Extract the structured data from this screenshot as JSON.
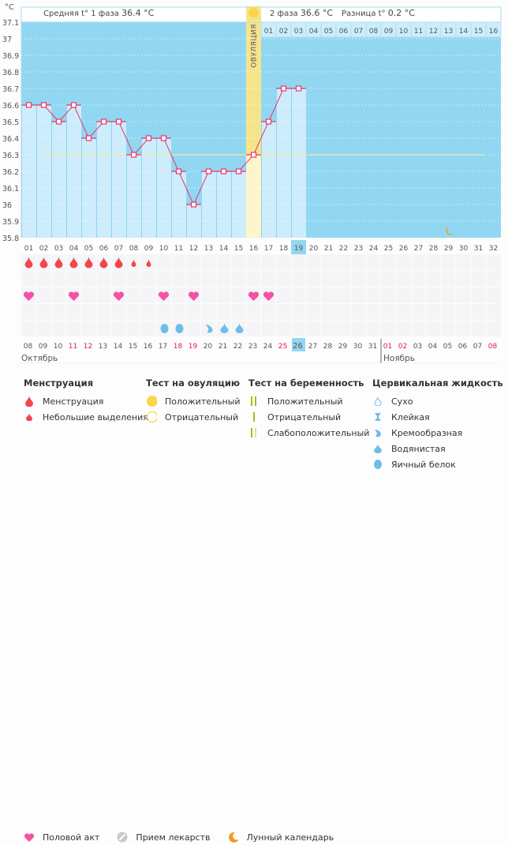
{
  "chart_data": {
    "type": "bar",
    "title": "",
    "ylabel": "°C",
    "ylim": [
      35.8,
      37.1
    ],
    "yticks": [
      "37.1",
      "37",
      "36.9",
      "36.8",
      "36.7",
      "36.6",
      "36.5",
      "36.4",
      "36.3",
      "36.2",
      "36.1",
      "36",
      "35.9",
      "35.8"
    ],
    "cycle_days": [
      "01",
      "02",
      "03",
      "04",
      "05",
      "06",
      "07",
      "08",
      "09",
      "10",
      "11",
      "12",
      "13",
      "14",
      "15",
      "16",
      "17",
      "18",
      "19",
      "20",
      "21",
      "22",
      "23",
      "24",
      "25",
      "26",
      "27",
      "28",
      "29",
      "30",
      "31",
      "32"
    ],
    "current_day": "19",
    "temperatures": [
      36.6,
      36.6,
      36.5,
      36.6,
      36.4,
      36.5,
      36.5,
      36.3,
      36.4,
      36.4,
      36.2,
      36.0,
      36.2,
      36.2,
      36.2,
      36.3,
      36.5,
      36.7,
      36.7
    ],
    "coverline": 36.3,
    "coverline_range_days": [
      2,
      32
    ],
    "ovulation_day": 16,
    "ovulation_label": "ОВУЛЯЦИЯ",
    "phase2_days": [
      "01",
      "02",
      "03",
      "04",
      "05",
      "06",
      "07",
      "08",
      "09",
      "10",
      "11",
      "12",
      "13",
      "14",
      "15",
      "16"
    ],
    "phase1_avg_label": "Средняя t° 1 фаза",
    "phase1_avg_value": "36.4 °C",
    "phase2_label": "2 фаза",
    "phase2_avg_value": "36.6 °C",
    "difference_label": "Разница t°",
    "difference_value": "0.2 °C",
    "menstruation": {
      "1": "heavy",
      "2": "heavy",
      "3": "heavy",
      "4": "heavy",
      "5": "heavy",
      "6": "heavy",
      "7": "heavy",
      "8": "light",
      "9": "light"
    },
    "intercourse_days": [
      1,
      4,
      7,
      10,
      12,
      16,
      17
    ],
    "cervical_fluid": {
      "10": "egg-white",
      "11": "egg-white",
      "13": "creamy",
      "14": "watery",
      "15": "watery"
    },
    "moon_day": 29,
    "calendar_dates": [
      "08",
      "09",
      "10",
      "11",
      "12",
      "13",
      "14",
      "15",
      "16",
      "17",
      "18",
      "19",
      "20",
      "21",
      "22",
      "23",
      "24",
      "25",
      "26",
      "27",
      "28",
      "29",
      "30",
      "31",
      "01",
      "02",
      "03",
      "04",
      "05",
      "06",
      "07",
      "08"
    ],
    "calendar_weekend_indexes": [
      3,
      4,
      10,
      11,
      17,
      24,
      25,
      31
    ],
    "calendar_today_index": 18,
    "month_start_index": 24,
    "months": [
      "Октябрь",
      "Ноябрь"
    ]
  },
  "colors": {
    "plot_bg": "#92d7f2",
    "bar_fill": "#cdedfc",
    "line": "#e8356b",
    "ovulation": "#f6e48c",
    "coverline": "#f2eba0",
    "menstruation": "#f2454d",
    "heart": "#f452a6",
    "fluid": "#6fbde9",
    "weekend": "#e2174f",
    "moon": "#f29a1c",
    "sun": "#fcd648",
    "preg_green": "#97c41a",
    "preg_light": "#d3e7a9"
  },
  "legend": {
    "menstruation": {
      "title": "Менструация",
      "items": [
        "Менструация",
        "Небольшие выделения"
      ]
    },
    "ovulation_test": {
      "title": "Тест на овуляцию",
      "items": [
        "Положительный",
        "Отрицательный"
      ]
    },
    "pregnancy_test": {
      "title": "Тест на беременность",
      "items": [
        "Положительный",
        "Отрицательный",
        "Слабоположительный"
      ]
    },
    "cervical_fluid": {
      "title": "Цервикальная жидкость",
      "items": [
        "Сухо",
        "Клейкая",
        "Кремообразная",
        "Водянистая",
        "Яичный белок"
      ]
    },
    "other": [
      "Половой акт",
      "Прием лекарств",
      "Лунный календарь"
    ]
  }
}
